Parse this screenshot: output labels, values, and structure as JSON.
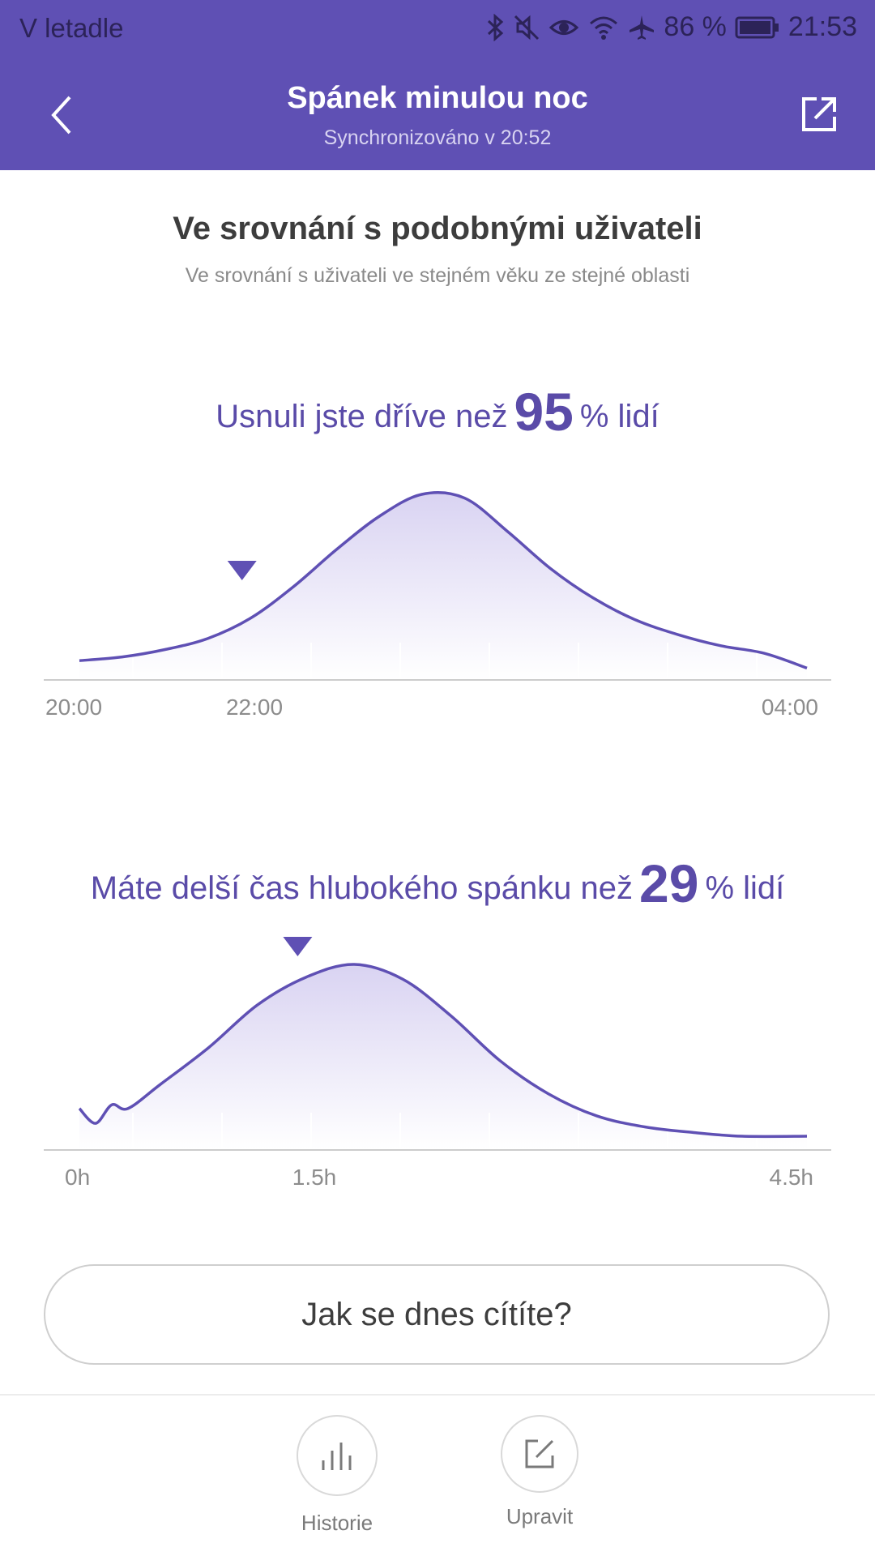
{
  "status_bar": {
    "carrier": "V letadle",
    "battery": "86 %",
    "time": "21:53",
    "icons": [
      "bluetooth-icon",
      "mute-icon",
      "eye-icon",
      "wifi-icon",
      "airplane-icon",
      "battery-icon"
    ]
  },
  "header": {
    "title": "Spánek minulou noc",
    "subtitle": "Synchronizováno v 20:52",
    "back_icon": "chevron-left-icon",
    "share_icon": "share-icon"
  },
  "section": {
    "title": "Ve srovnání s podobnými uživateli",
    "subtitle": "Ve srovnání s uživateli ve stejném věku ze stejné oblasti"
  },
  "stat1": {
    "prefix": "Usnuli jste dříve než",
    "value": "95",
    "suffix": "% lidí"
  },
  "stat2": {
    "prefix": "Máte delší čas hlubokého spánku než",
    "value": "29",
    "suffix": "% lidí"
  },
  "chart_data": [
    {
      "type": "area",
      "x_ticks": [
        "20:00",
        "22:00",
        "04:00"
      ],
      "x": [
        0,
        0.5,
        1,
        1.5,
        2,
        2.5,
        3,
        3.5,
        4,
        4.5,
        5,
        5.5,
        6,
        6.5,
        7,
        7.5,
        8,
        8.5
      ],
      "values": [
        0.1,
        0.12,
        0.16,
        0.22,
        0.33,
        0.5,
        0.7,
        0.88,
        1.0,
        0.98,
        0.8,
        0.6,
        0.44,
        0.32,
        0.24,
        0.18,
        0.14,
        0.06
      ],
      "marker_x": 1.9,
      "ylim": [
        0,
        1
      ],
      "grid": true,
      "color": "#5f50b4"
    },
    {
      "type": "area",
      "x_ticks": [
        "0h",
        "1.5h",
        "4.5h"
      ],
      "x": [
        0,
        0.1,
        0.2,
        0.3,
        0.5,
        0.8,
        1.1,
        1.4,
        1.7,
        2.0,
        2.3,
        2.6,
        2.9,
        3.2,
        3.5,
        3.8,
        4.1,
        4.5
      ],
      "values": [
        0.22,
        0.14,
        0.24,
        0.22,
        0.35,
        0.55,
        0.78,
        0.93,
        1.0,
        0.92,
        0.72,
        0.48,
        0.3,
        0.18,
        0.12,
        0.09,
        0.07,
        0.07
      ],
      "marker_x": 1.35,
      "ylim": [
        0,
        1
      ],
      "grid": true,
      "color": "#5f50b4"
    }
  ],
  "feel_button": {
    "label": "Jak se dnes cítíte?"
  },
  "bottom_nav": [
    {
      "label": "Historie",
      "icon": "bar-chart-icon"
    },
    {
      "label": "Upravit",
      "icon": "edit-icon"
    }
  ]
}
